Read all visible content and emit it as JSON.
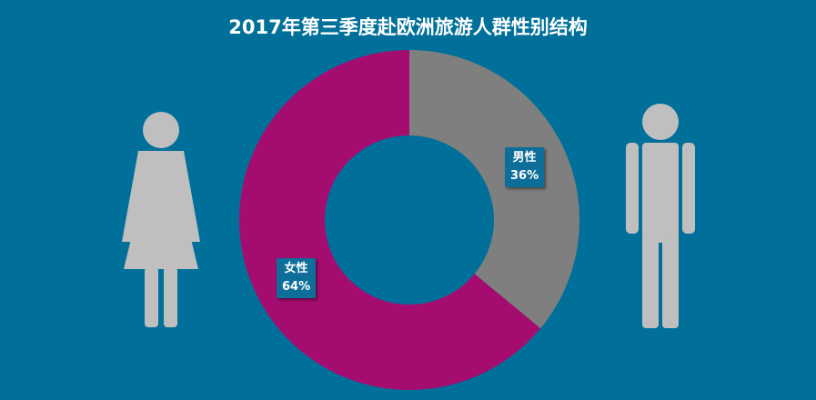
{
  "chart_data": {
    "type": "pie",
    "variant": "donut",
    "title": "2017年第三季度赴欧洲旅游人群性别结构",
    "slices": [
      {
        "name": "男性",
        "value": 36,
        "label": "36%",
        "color": "#7f7f7f"
      },
      {
        "name": "女性",
        "value": 64,
        "label": "64%",
        "color": "#a50c6f"
      }
    ],
    "start": "12 o'clock",
    "direction": "clockwise",
    "legend": "none"
  },
  "colors": {
    "background": "#00709b",
    "figure": "#bfbfbf",
    "label_box": "#0d6e99"
  },
  "icons": {
    "left": "female-figure-icon",
    "right": "male-figure-icon"
  }
}
